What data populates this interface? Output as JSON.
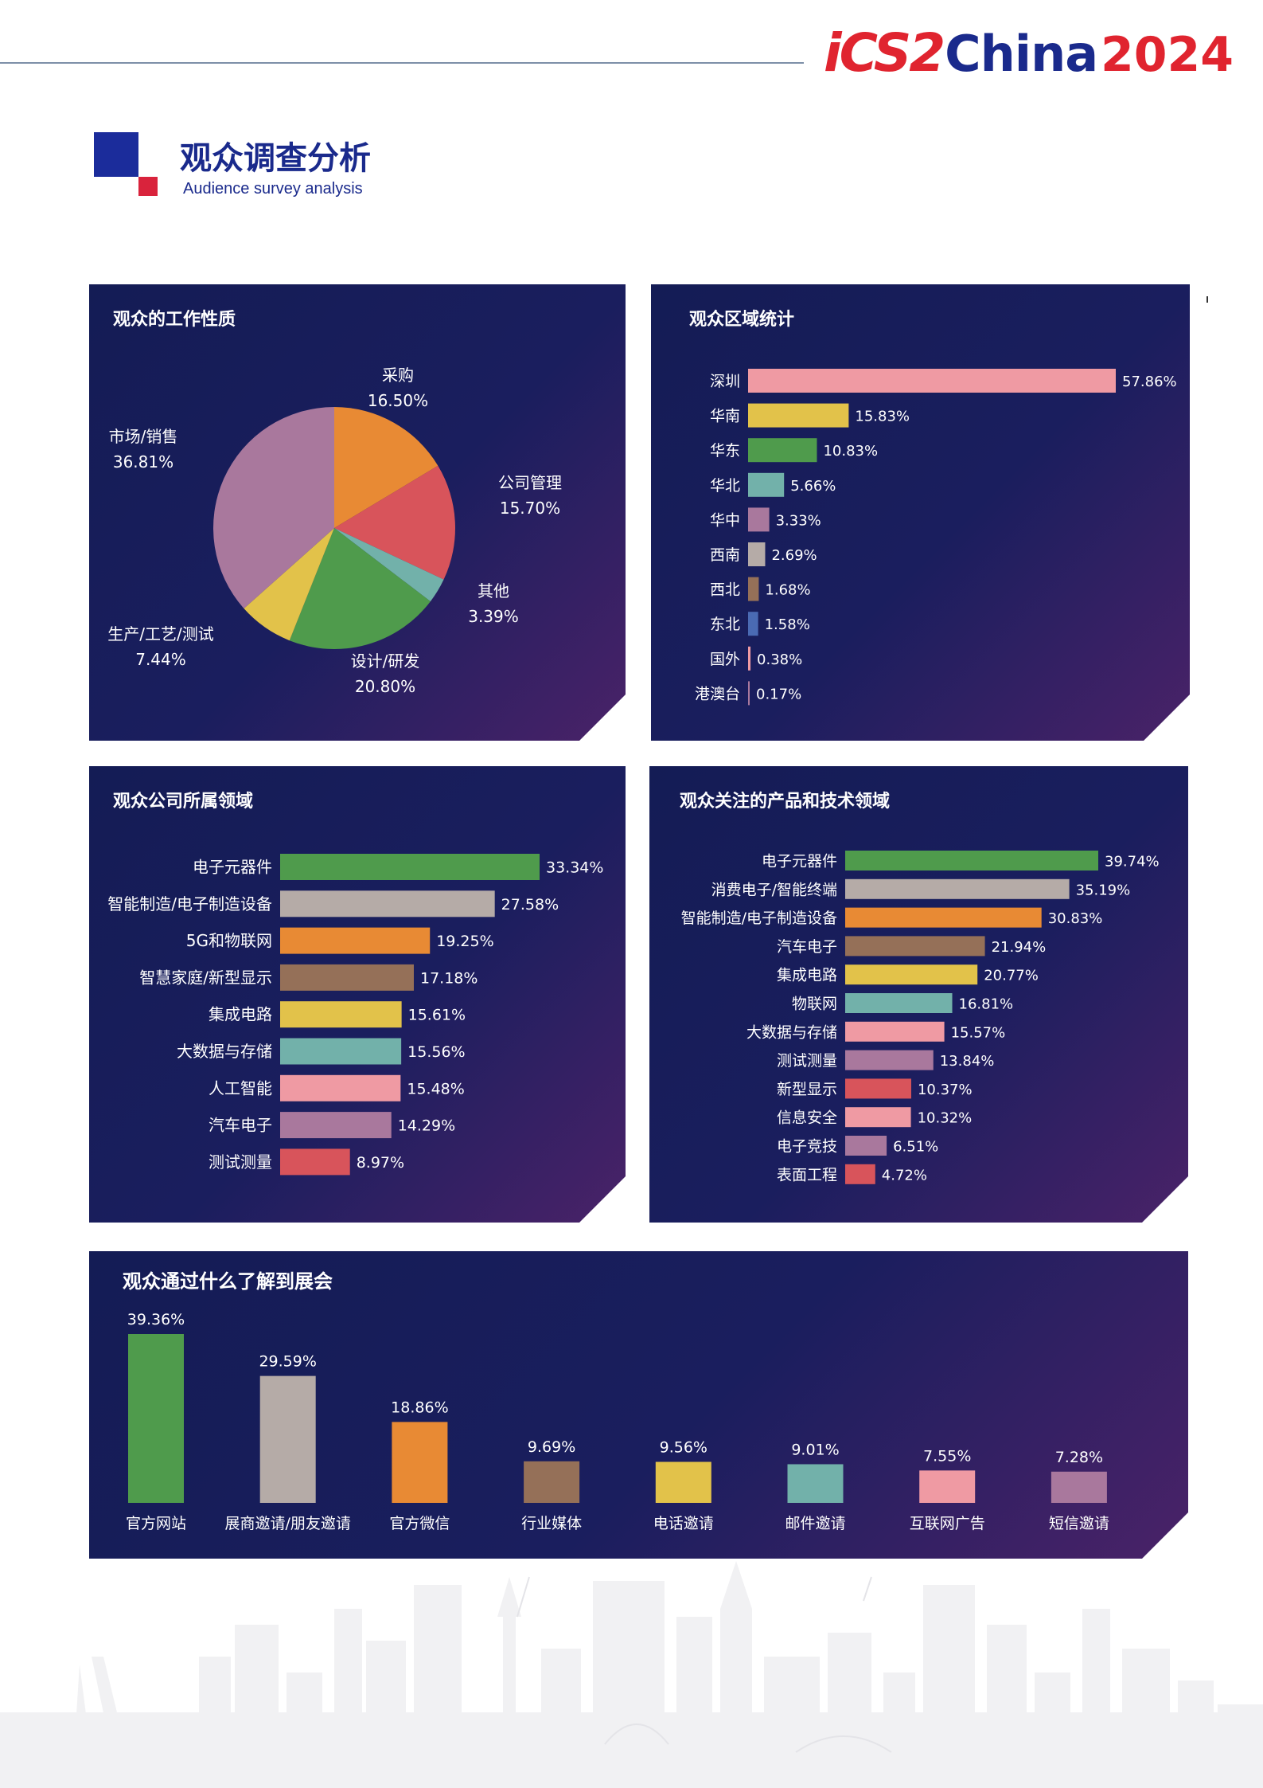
{
  "header": {
    "logo_ics": "iCS2",
    "logo_china": "China",
    "logo_year": "2024"
  },
  "section": {
    "title_cn": "观众调查分析",
    "title_en": "Audience survey analysis"
  },
  "colors": {
    "green": "#4f9b4c",
    "gray": "#b5aba7",
    "orange": "#e88a34",
    "brown": "#957058",
    "yellow": "#e2c24a",
    "teal": "#72b1aa",
    "pink": "#ef9aa3",
    "mauve": "#a9789d",
    "red": "#d8545b",
    "blue": "#4a6ab3"
  },
  "chart_data": [
    {
      "id": "job",
      "type": "pie",
      "title": "观众的工作性质",
      "slices": [
        {
          "label": "采购",
          "value": 16.5,
          "display": "16.50%",
          "color": "#e88a34"
        },
        {
          "label": "公司管理",
          "value": 15.7,
          "display": "15.70%",
          "color": "#d8545b"
        },
        {
          "label": "其他",
          "value": 3.39,
          "display": "3.39%",
          "color": "#72b1aa"
        },
        {
          "label": "设计/研发",
          "value": 20.8,
          "display": "20.80%",
          "color": "#4f9b4c"
        },
        {
          "label": "生产/工艺/测试",
          "value": 7.44,
          "display": "7.44%",
          "color": "#e2c24a"
        },
        {
          "label": "市场/销售",
          "value": 36.81,
          "display": "36.81%",
          "color": "#a9789d"
        }
      ]
    },
    {
      "id": "region",
      "type": "bar",
      "orientation": "horizontal",
      "title": "观众区域统计",
      "categories": [
        "深圳",
        "华南",
        "华东",
        "华北",
        "华中",
        "西南",
        "西北",
        "东北",
        "国外",
        "港澳台"
      ],
      "values": [
        57.86,
        15.83,
        10.83,
        5.66,
        3.33,
        2.69,
        1.68,
        1.58,
        0.38,
        0.17
      ],
      "labels": [
        "57.86%",
        "15.83%",
        "10.83%",
        "5.66%",
        "3.33%",
        "2.69%",
        "1.68%",
        "1.58%",
        "0.38%",
        "0.17%"
      ],
      "colors": [
        "#ef9aa3",
        "#e2c24a",
        "#4f9b4c",
        "#72b1aa",
        "#a9789d",
        "#b5aba7",
        "#957058",
        "#4a6ab3",
        "#ef9aa3",
        "#a9789d"
      ]
    },
    {
      "id": "industry",
      "type": "bar",
      "orientation": "horizontal",
      "title": "观众公司所属领域",
      "categories": [
        "电子元器件",
        "智能制造/电子制造设备",
        "5G和物联网",
        "智慧家庭/新型显示",
        "集成电路",
        "大数据与存储",
        "人工智能",
        "汽车电子",
        "测试测量"
      ],
      "values": [
        33.34,
        27.58,
        19.25,
        17.18,
        15.61,
        15.56,
        15.48,
        14.29,
        8.97
      ],
      "labels": [
        "33.34%",
        "27.58%",
        "19.25%",
        "17.18%",
        "15.61%",
        "15.56%",
        "15.48%",
        "14.29%",
        "8.97%"
      ],
      "colors": [
        "#4f9b4c",
        "#b5aba7",
        "#e88a34",
        "#957058",
        "#e2c24a",
        "#72b1aa",
        "#ef9aa3",
        "#a9789d",
        "#d8545b"
      ]
    },
    {
      "id": "focus",
      "type": "bar",
      "orientation": "horizontal",
      "title": "观众关注的产品和技术领域",
      "categories": [
        "电子元器件",
        "消费电子/智能终端",
        "智能制造/电子制造设备",
        "汽车电子",
        "集成电路",
        "物联网",
        "大数据与存储",
        "测试测量",
        "新型显示",
        "信息安全",
        "电子竞技",
        "表面工程"
      ],
      "values": [
        39.74,
        35.19,
        30.83,
        21.94,
        20.77,
        16.81,
        15.57,
        13.84,
        10.37,
        10.32,
        6.51,
        4.72
      ],
      "labels": [
        "39.74%",
        "35.19%",
        "30.83%",
        "21.94%",
        "20.77%",
        "16.81%",
        "15.57%",
        "13.84%",
        "10.37%",
        "10.32%",
        "6.51%",
        "4.72%"
      ],
      "colors": [
        "#4f9b4c",
        "#b5aba7",
        "#e88a34",
        "#957058",
        "#e2c24a",
        "#72b1aa",
        "#ef9aa3",
        "#a9789d",
        "#d8545b",
        "#ef9aa3",
        "#a9789d",
        "#d8545b"
      ]
    },
    {
      "id": "source",
      "type": "bar",
      "orientation": "vertical",
      "title": "观众通过什么了解到展会",
      "categories": [
        "官方网站",
        "展商邀请/朋友邀请",
        "官方微信",
        "行业媒体",
        "电话邀请",
        "邮件邀请",
        "互联网广告",
        "短信邀请"
      ],
      "values": [
        39.36,
        29.59,
        18.86,
        9.69,
        9.56,
        9.01,
        7.55,
        7.28
      ],
      "labels": [
        "39.36%",
        "29.59%",
        "18.86%",
        "9.69%",
        "9.56%",
        "9.01%",
        "7.55%",
        "7.28%"
      ],
      "colors": [
        "#4f9b4c",
        "#b5aba7",
        "#e88a34",
        "#957058",
        "#e2c24a",
        "#72b1aa",
        "#ef9aa3",
        "#a9789d"
      ]
    }
  ]
}
